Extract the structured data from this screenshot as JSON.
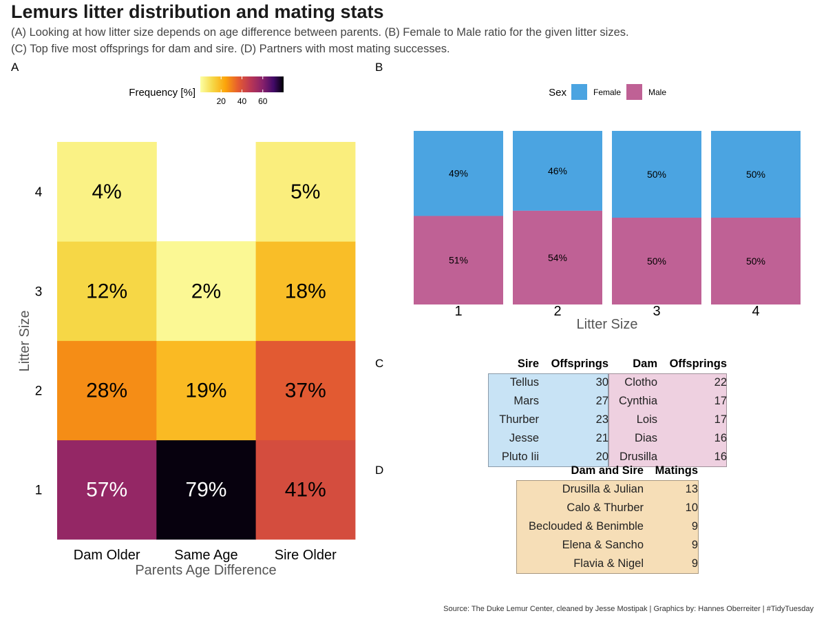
{
  "title": "Lemurs litter distribution and mating stats",
  "subtitle_lines": [
    "(A) Looking at how litter size depends on age difference between parents. (B) Female to Male ratio for the given litter sizes.",
    "(C) Top five most offsprings for dam and sire. (D) Partners with most mating successes."
  ],
  "panel_labels": {
    "a": "A",
    "b": "B",
    "c": "C",
    "d": "D"
  },
  "caption": "Source: The Duke Lemur Center, cleaned by  Jesse Mostipak | Graphics by: Hannes Oberreiter | #TidyTuesday",
  "colors": {
    "female": "#4ba4e1",
    "male": "#bf6195",
    "sire_table_bg": "#c8e3f5",
    "dam_table_bg": "#eed0e0",
    "mating_table_bg": "#f6deb7"
  },
  "chart_data": [
    {
      "type": "heatmap",
      "xlabel": "Parents Age Difference",
      "ylabel": "Litter Size",
      "x_categories": [
        "Dam Older",
        "Same Age",
        "Sire Older"
      ],
      "y_categories": [
        "1",
        "2",
        "3",
        "4"
      ],
      "legend": {
        "title": "Frequency [%]",
        "ticks": [
          "20",
          "40",
          "60"
        ],
        "range": [
          0,
          80
        ],
        "placement": "top",
        "palette": "inferno-reversed"
      },
      "cells": [
        {
          "x": "Dam Older",
          "y": "1",
          "value": 57,
          "label": "57%"
        },
        {
          "x": "Same Age",
          "y": "1",
          "value": 79,
          "label": "79%"
        },
        {
          "x": "Sire Older",
          "y": "1",
          "value": 41,
          "label": "41%"
        },
        {
          "x": "Dam Older",
          "y": "2",
          "value": 28,
          "label": "28%"
        },
        {
          "x": "Same Age",
          "y": "2",
          "value": 19,
          "label": "19%"
        },
        {
          "x": "Sire Older",
          "y": "2",
          "value": 37,
          "label": "37%"
        },
        {
          "x": "Dam Older",
          "y": "3",
          "value": 12,
          "label": "12%"
        },
        {
          "x": "Same Age",
          "y": "3",
          "value": 2,
          "label": "2%"
        },
        {
          "x": "Sire Older",
          "y": "3",
          "value": 18,
          "label": "18%"
        },
        {
          "x": "Dam Older",
          "y": "4",
          "value": 4,
          "label": "4%"
        },
        {
          "x": "Sire Older",
          "y": "4",
          "value": 5,
          "label": "5%"
        }
      ]
    },
    {
      "type": "bar",
      "stacked": true,
      "normalized": true,
      "xlabel": "Litter Size",
      "categories": [
        "1",
        "2",
        "3",
        "4"
      ],
      "legend": {
        "title": "Sex",
        "placement": "top"
      },
      "series": [
        {
          "name": "Female",
          "values": [
            49,
            46,
            50,
            50
          ],
          "labels": [
            "49%",
            "46%",
            "50%",
            "50%"
          ]
        },
        {
          "name": "Male",
          "values": [
            51,
            54,
            50,
            50
          ],
          "labels": [
            "51%",
            "54%",
            "50%",
            "50%"
          ]
        }
      ]
    },
    {
      "type": "table",
      "columns": [
        "Sire",
        "Offsprings",
        "Dam",
        "Offsprings"
      ],
      "rows": [
        [
          "Tellus",
          "30",
          "Clotho",
          "22"
        ],
        [
          "Mars",
          "27",
          "Cynthia",
          "17"
        ],
        [
          "Thurber",
          "23",
          "Lois",
          "17"
        ],
        [
          "Jesse",
          "21",
          "Dias",
          "16"
        ],
        [
          "Pluto Iii",
          "20",
          "Drusilla",
          "16"
        ]
      ]
    },
    {
      "type": "table",
      "columns": [
        "Dam and Sire",
        "Matings"
      ],
      "rows": [
        [
          "Drusilla & Julian",
          "13"
        ],
        [
          "Calo & Thurber",
          "10"
        ],
        [
          "Beclouded & Benimble",
          "9"
        ],
        [
          "Elena & Sancho",
          "9"
        ],
        [
          "Flavia & Nigel",
          "9"
        ]
      ]
    }
  ]
}
